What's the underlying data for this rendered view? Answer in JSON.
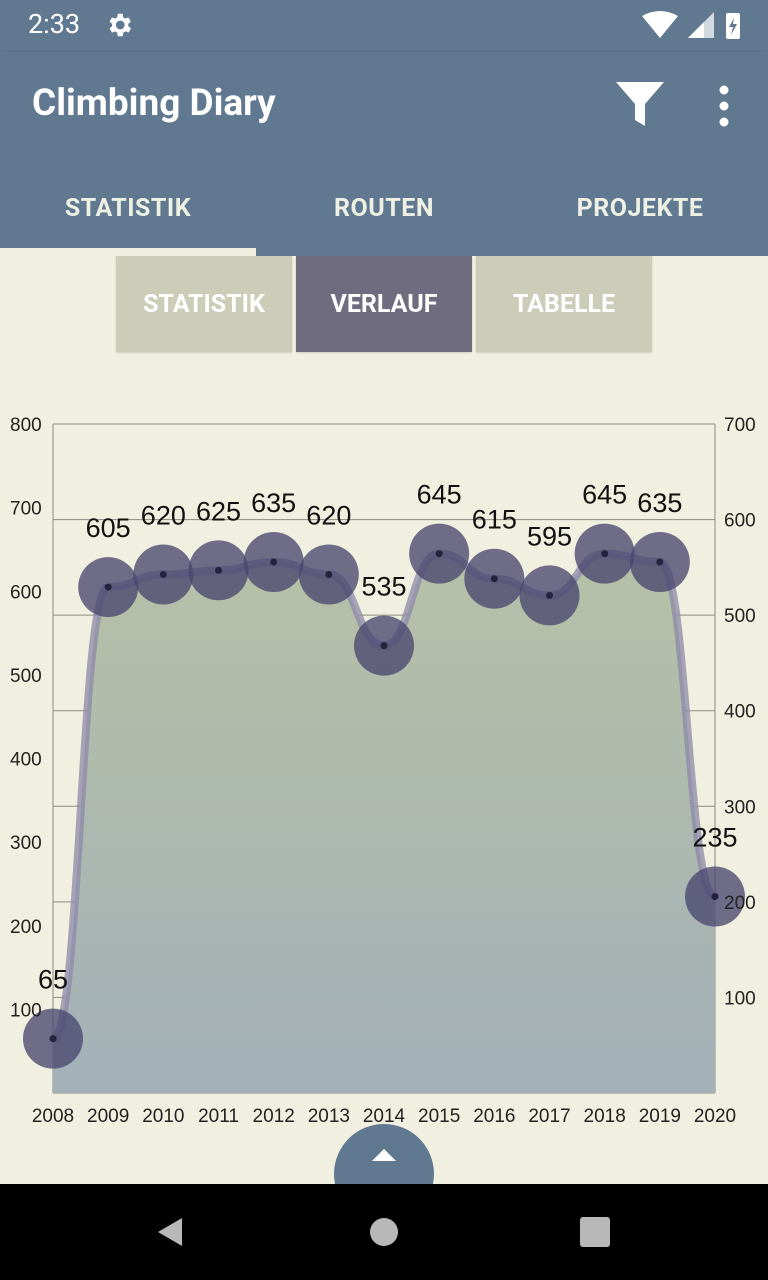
{
  "status_bar": {
    "time": "2:33",
    "icons": [
      "settings-gear-icon",
      "wifi-icon",
      "signal-icon",
      "battery-icon"
    ]
  },
  "app_bar": {
    "title": "Climbing Diary",
    "actions": [
      "filter-icon",
      "more-vert-icon"
    ]
  },
  "tabs": [
    {
      "label": "STATISTIK",
      "active": true
    },
    {
      "label": "ROUTEN",
      "active": false
    },
    {
      "label": "PROJEKTE",
      "active": false
    }
  ],
  "segments": [
    {
      "label": "STATISTIK",
      "active": false
    },
    {
      "label": "VERLAUF",
      "active": true
    },
    {
      "label": "TABELLE",
      "active": false
    }
  ],
  "colors": {
    "primary": "#607890",
    "background": "#f1f0e0",
    "segment_active": "#706c80",
    "segment_inactive": "#cbcdb8",
    "point": "#4a4670"
  },
  "chart_data": {
    "type": "area",
    "categories": [
      "2008",
      "2009",
      "2010",
      "2011",
      "2012",
      "2013",
      "2014",
      "2015",
      "2016",
      "2017",
      "2018",
      "2019",
      "2020"
    ],
    "values": [
      65,
      605,
      620,
      625,
      635,
      620,
      535,
      645,
      615,
      595,
      645,
      635,
      235
    ],
    "y_left": {
      "range": [
        0,
        800
      ],
      "ticks": [
        100,
        200,
        300,
        400,
        500,
        600,
        700,
        800
      ]
    },
    "y_right": {
      "range": [
        0,
        700
      ],
      "ticks": [
        100,
        200,
        300,
        400,
        500,
        600,
        700
      ]
    },
    "grid": true,
    "data_labels": true,
    "title": "",
    "xlabel": "",
    "ylabel": ""
  },
  "navigation": [
    "back-icon",
    "home-icon",
    "recent-apps-icon"
  ]
}
